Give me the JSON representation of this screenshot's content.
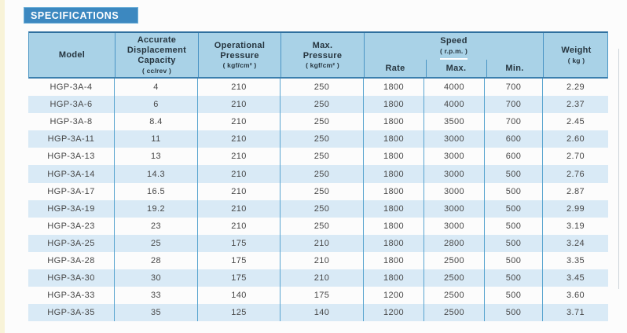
{
  "page": {
    "section_title": "SPECIFICATIONS"
  },
  "colors": {
    "title_bar_blue": "#3c88c0",
    "header_blue": "#a9d2e7",
    "stripe_blue": "#d9eaf6",
    "grid_line_blue": "#58a4cf",
    "edge_strip_cream": "#f8f3d8"
  },
  "table": {
    "columns": {
      "model": {
        "label": "Model"
      },
      "capacity": {
        "label": "Accurate\nDisplacement\nCapacity",
        "unit": "( cc/rev )"
      },
      "op_pressure": {
        "label": "Operational\nPressure",
        "unit": "( kgf/cm² )"
      },
      "max_pressure": {
        "label": "Max.\nPressure",
        "unit": "( kgf/cm² )"
      },
      "speed": {
        "label": "Speed",
        "unit": "( r.p.m. )",
        "sub": {
          "rate": "Rate",
          "max": "Max.",
          "min": "Min."
        }
      },
      "weight": {
        "label": "Weight",
        "unit": "( kg )"
      }
    },
    "rows": [
      {
        "model": "HGP-3A-4",
        "capacity": "4",
        "op_pressure": "210",
        "max_pressure": "250",
        "rate": "1800",
        "max": "4000",
        "min": "700",
        "weight": "2.29"
      },
      {
        "model": "HGP-3A-6",
        "capacity": "6",
        "op_pressure": "210",
        "max_pressure": "250",
        "rate": "1800",
        "max": "4000",
        "min": "700",
        "weight": "2.37"
      },
      {
        "model": "HGP-3A-8",
        "capacity": "8.4",
        "op_pressure": "210",
        "max_pressure": "250",
        "rate": "1800",
        "max": "3500",
        "min": "700",
        "weight": "2.45"
      },
      {
        "model": "HGP-3A-11",
        "capacity": "11",
        "op_pressure": "210",
        "max_pressure": "250",
        "rate": "1800",
        "max": "3000",
        "min": "600",
        "weight": "2.60"
      },
      {
        "model": "HGP-3A-13",
        "capacity": "13",
        "op_pressure": "210",
        "max_pressure": "250",
        "rate": "1800",
        "max": "3000",
        "min": "600",
        "weight": "2.70"
      },
      {
        "model": "HGP-3A-14",
        "capacity": "14.3",
        "op_pressure": "210",
        "max_pressure": "250",
        "rate": "1800",
        "max": "3000",
        "min": "500",
        "weight": "2.76"
      },
      {
        "model": "HGP-3A-17",
        "capacity": "16.5",
        "op_pressure": "210",
        "max_pressure": "250",
        "rate": "1800",
        "max": "3000",
        "min": "500",
        "weight": "2.87"
      },
      {
        "model": "HGP-3A-19",
        "capacity": "19.2",
        "op_pressure": "210",
        "max_pressure": "250",
        "rate": "1800",
        "max": "3000",
        "min": "500",
        "weight": "2.99"
      },
      {
        "model": "HGP-3A-23",
        "capacity": "23",
        "op_pressure": "210",
        "max_pressure": "250",
        "rate": "1800",
        "max": "3000",
        "min": "500",
        "weight": "3.19"
      },
      {
        "model": "HGP-3A-25",
        "capacity": "25",
        "op_pressure": "175",
        "max_pressure": "210",
        "rate": "1800",
        "max": "2800",
        "min": "500",
        "weight": "3.24"
      },
      {
        "model": "HGP-3A-28",
        "capacity": "28",
        "op_pressure": "175",
        "max_pressure": "210",
        "rate": "1800",
        "max": "2500",
        "min": "500",
        "weight": "3.35"
      },
      {
        "model": "HGP-3A-30",
        "capacity": "30",
        "op_pressure": "175",
        "max_pressure": "210",
        "rate": "1800",
        "max": "2500",
        "min": "500",
        "weight": "3.45"
      },
      {
        "model": "HGP-3A-33",
        "capacity": "33",
        "op_pressure": "140",
        "max_pressure": "175",
        "rate": "1200",
        "max": "2500",
        "min": "500",
        "weight": "3.60"
      },
      {
        "model": "HGP-3A-35",
        "capacity": "35",
        "op_pressure": "125",
        "max_pressure": "140",
        "rate": "1200",
        "max": "2500",
        "min": "500",
        "weight": "3.71"
      }
    ]
  }
}
